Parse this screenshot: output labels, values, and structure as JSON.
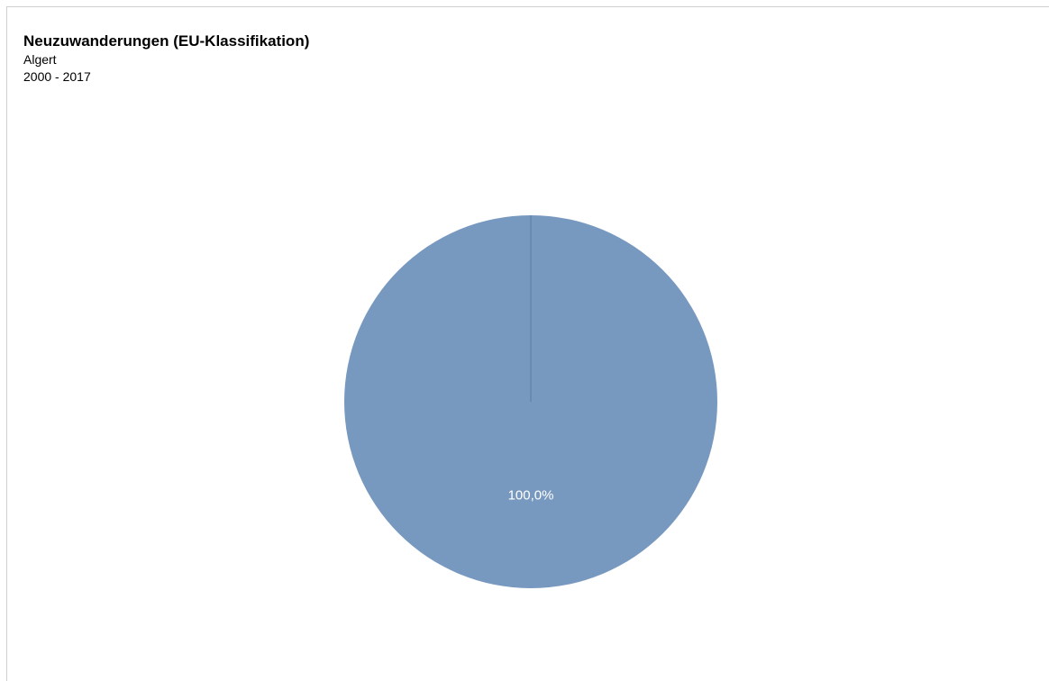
{
  "chart_data": {
    "type": "pie",
    "title": "Neuzuwanderungen (EU-Klassifikation)",
    "subtitle": "Algert",
    "period": "2000 - 2017",
    "categories": [
      ""
    ],
    "values": [
      100.0
    ],
    "labels": [
      "100,0%"
    ],
    "legend": "none"
  },
  "colors": {
    "slice": "#7899bf",
    "slice_edge": "#5a7aa3",
    "label_text": "#ffffff",
    "frame_border": "#cfcfcf"
  }
}
